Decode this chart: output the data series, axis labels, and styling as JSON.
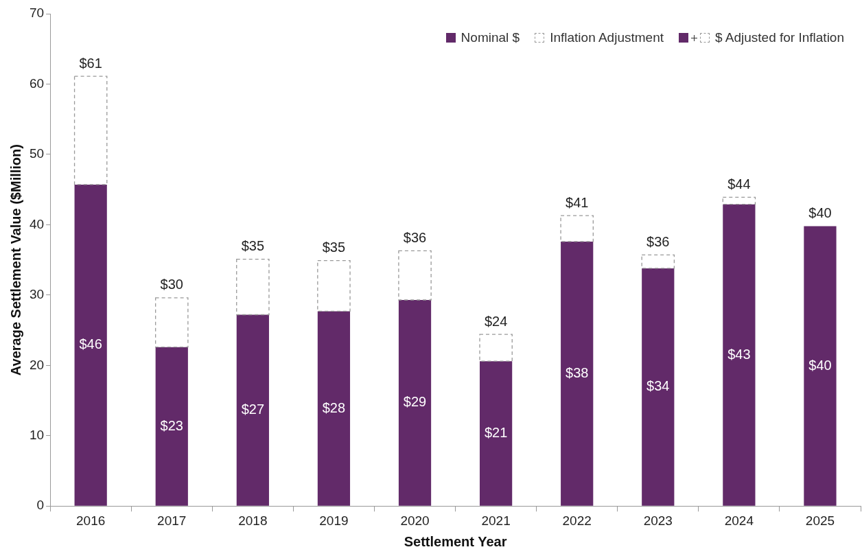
{
  "chart_data": {
    "type": "bar",
    "xlabel": "Settlement Year",
    "ylabel": "Average Settlement Value ($Million)",
    "categories": [
      "2016",
      "2017",
      "2018",
      "2019",
      "2020",
      "2021",
      "2022",
      "2023",
      "2024",
      "2025"
    ],
    "stacked": true,
    "series": [
      {
        "name": "Nominal $",
        "color": "#622a69",
        "values": [
          45.7,
          22.6,
          27.2,
          27.7,
          29.3,
          20.6,
          37.6,
          33.8,
          42.9,
          39.8
        ],
        "value_labels": [
          "$46",
          "$23",
          "$27",
          "$28",
          "$29",
          "$21",
          "$38",
          "$34",
          "$43",
          "$40"
        ]
      },
      {
        "name": "Inflation Adjustment",
        "color": "#999999",
        "line_style": "dashed",
        "values": [
          15.4,
          7.0,
          7.9,
          7.2,
          7.0,
          3.8,
          3.7,
          1.9,
          1.0,
          null
        ]
      }
    ],
    "totals": [
      "$61",
      "$30",
      "$35",
      "$35",
      "$36",
      "$24",
      "$41",
      "$36",
      "$44",
      "$40"
    ],
    "annotations": [
      "$ Adjusted for Inflation"
    ],
    "ylim": [
      0,
      70
    ],
    "yticks": [
      0,
      10,
      20,
      30,
      40,
      50,
      60,
      70
    ],
    "grid": false,
    "legend": "top right"
  }
}
